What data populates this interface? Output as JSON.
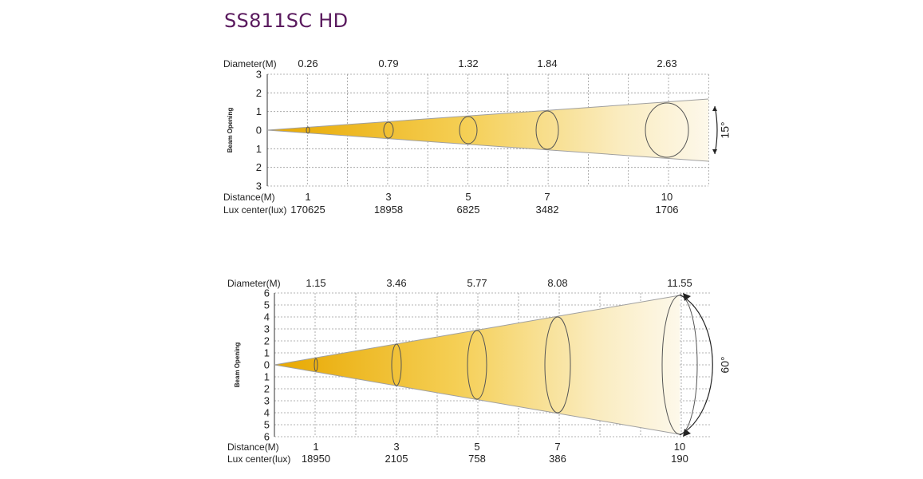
{
  "title": "SS811SC HD",
  "colors": {
    "title": "#5a1a5e",
    "beam_dark": "#e8a800",
    "beam_light": "#fdf6e3",
    "grid": "#9a9a9a"
  },
  "diagrams": [
    {
      "diameter_label": "Diameter(M)",
      "diameters": [
        "0.26",
        "0.79",
        "1.32",
        "1.84",
        "2.63"
      ],
      "y_ticks": [
        "3",
        "2",
        "1",
        "0",
        "1",
        "2",
        "3"
      ],
      "y_axis_label": "Beam Opening",
      "distance_label": "Distance(M)",
      "distances": [
        "1",
        "3",
        "5",
        "7",
        "10"
      ],
      "lux_label": "Lux center(lux)",
      "lux": [
        "170625",
        "18958",
        "6825",
        "3482",
        "1706"
      ],
      "angle": "15°"
    },
    {
      "diameter_label": "Diameter(M)",
      "diameters": [
        "1.15",
        "3.46",
        "5.77",
        "8.08",
        "11.55"
      ],
      "y_ticks": [
        "6",
        "5",
        "4",
        "3",
        "2",
        "1",
        "0",
        "1",
        "2",
        "3",
        "4",
        "5",
        "6"
      ],
      "y_axis_label": "Beam Opening",
      "distance_label": "Distance(M)",
      "distances": [
        "1",
        "3",
        "5",
        "7",
        "10"
      ],
      "lux_label": "Lux center(lux)",
      "lux": [
        "18950",
        "2105",
        "758",
        "386",
        "190"
      ],
      "angle": "60°"
    }
  ]
}
